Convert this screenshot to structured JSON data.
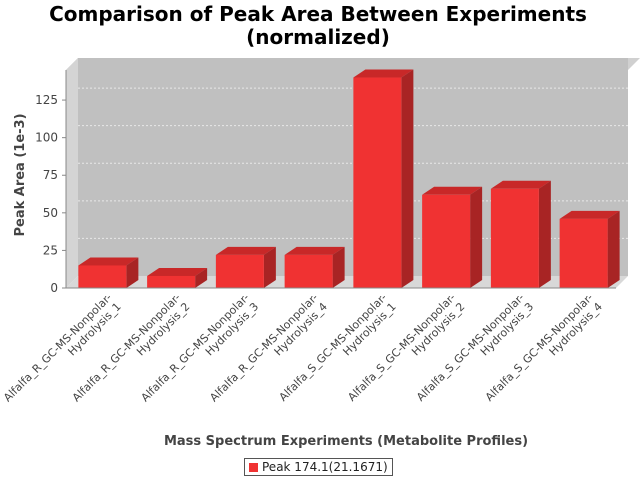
{
  "chart_data": {
    "type": "bar",
    "title_lines": [
      "Comparison of Peak Area Between Experiments",
      "(normalized)"
    ],
    "xlabel": "Mass Spectrum Experiments (Metabolite Profiles)",
    "ylabel": "Peak Area (1e-3)",
    "ylim": [
      0,
      145
    ],
    "yticks": [
      0,
      25,
      50,
      75,
      100,
      125
    ],
    "grid": true,
    "legend_position": "bottom",
    "categories": [
      [
        "Alfalfa_R_GC-MS-Nonpolar-",
        "Hydrolysis_1"
      ],
      [
        "Alfalfa_R_GC-MS-Nonpolar-",
        "Hydrolysis_2"
      ],
      [
        "Alfalfa_R_GC-MS-Nonpolar-",
        "Hydrolysis_3"
      ],
      [
        "Alfalfa_R_GC-MS-Nonpolar-",
        "Hydrolysis_4"
      ],
      [
        "Alfalfa_S_GC-MS-Nonpolar-",
        "Hydrolysis_1"
      ],
      [
        "Alfalfa_S_GC-MS-Nonpolar-",
        "Hydrolysis_2"
      ],
      [
        "Alfalfa_S_GC-MS-Nonpolar-",
        "Hydrolysis_3"
      ],
      [
        "Alfalfa_S_GC-MS-Nonpolar-",
        "Hydrolysis_4"
      ]
    ],
    "series": [
      {
        "name": "Peak 174.1(21.1671)",
        "color": "#f03232",
        "values": [
          15,
          8,
          22,
          22,
          140,
          62,
          66,
          46
        ]
      }
    ]
  }
}
